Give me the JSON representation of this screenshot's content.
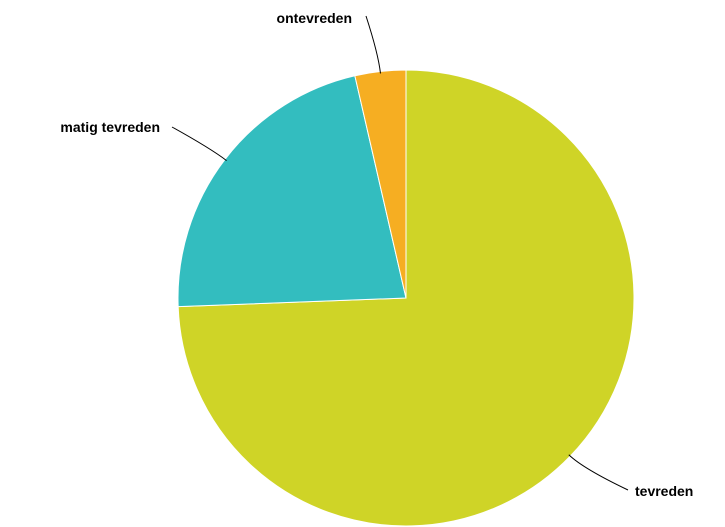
{
  "chart_data": {
    "type": "pie",
    "title": "",
    "start_angle_deg": 0,
    "direction": "clockwise",
    "slices": [
      {
        "label": "tevreden",
        "value": 74.4,
        "color": "#cfd427"
      },
      {
        "label": "matig tevreden",
        "value": 22.0,
        "color": "#33bdbf"
      },
      {
        "label": "ontevreden",
        "value": 3.6,
        "color": "#f6ae22"
      }
    ]
  }
}
